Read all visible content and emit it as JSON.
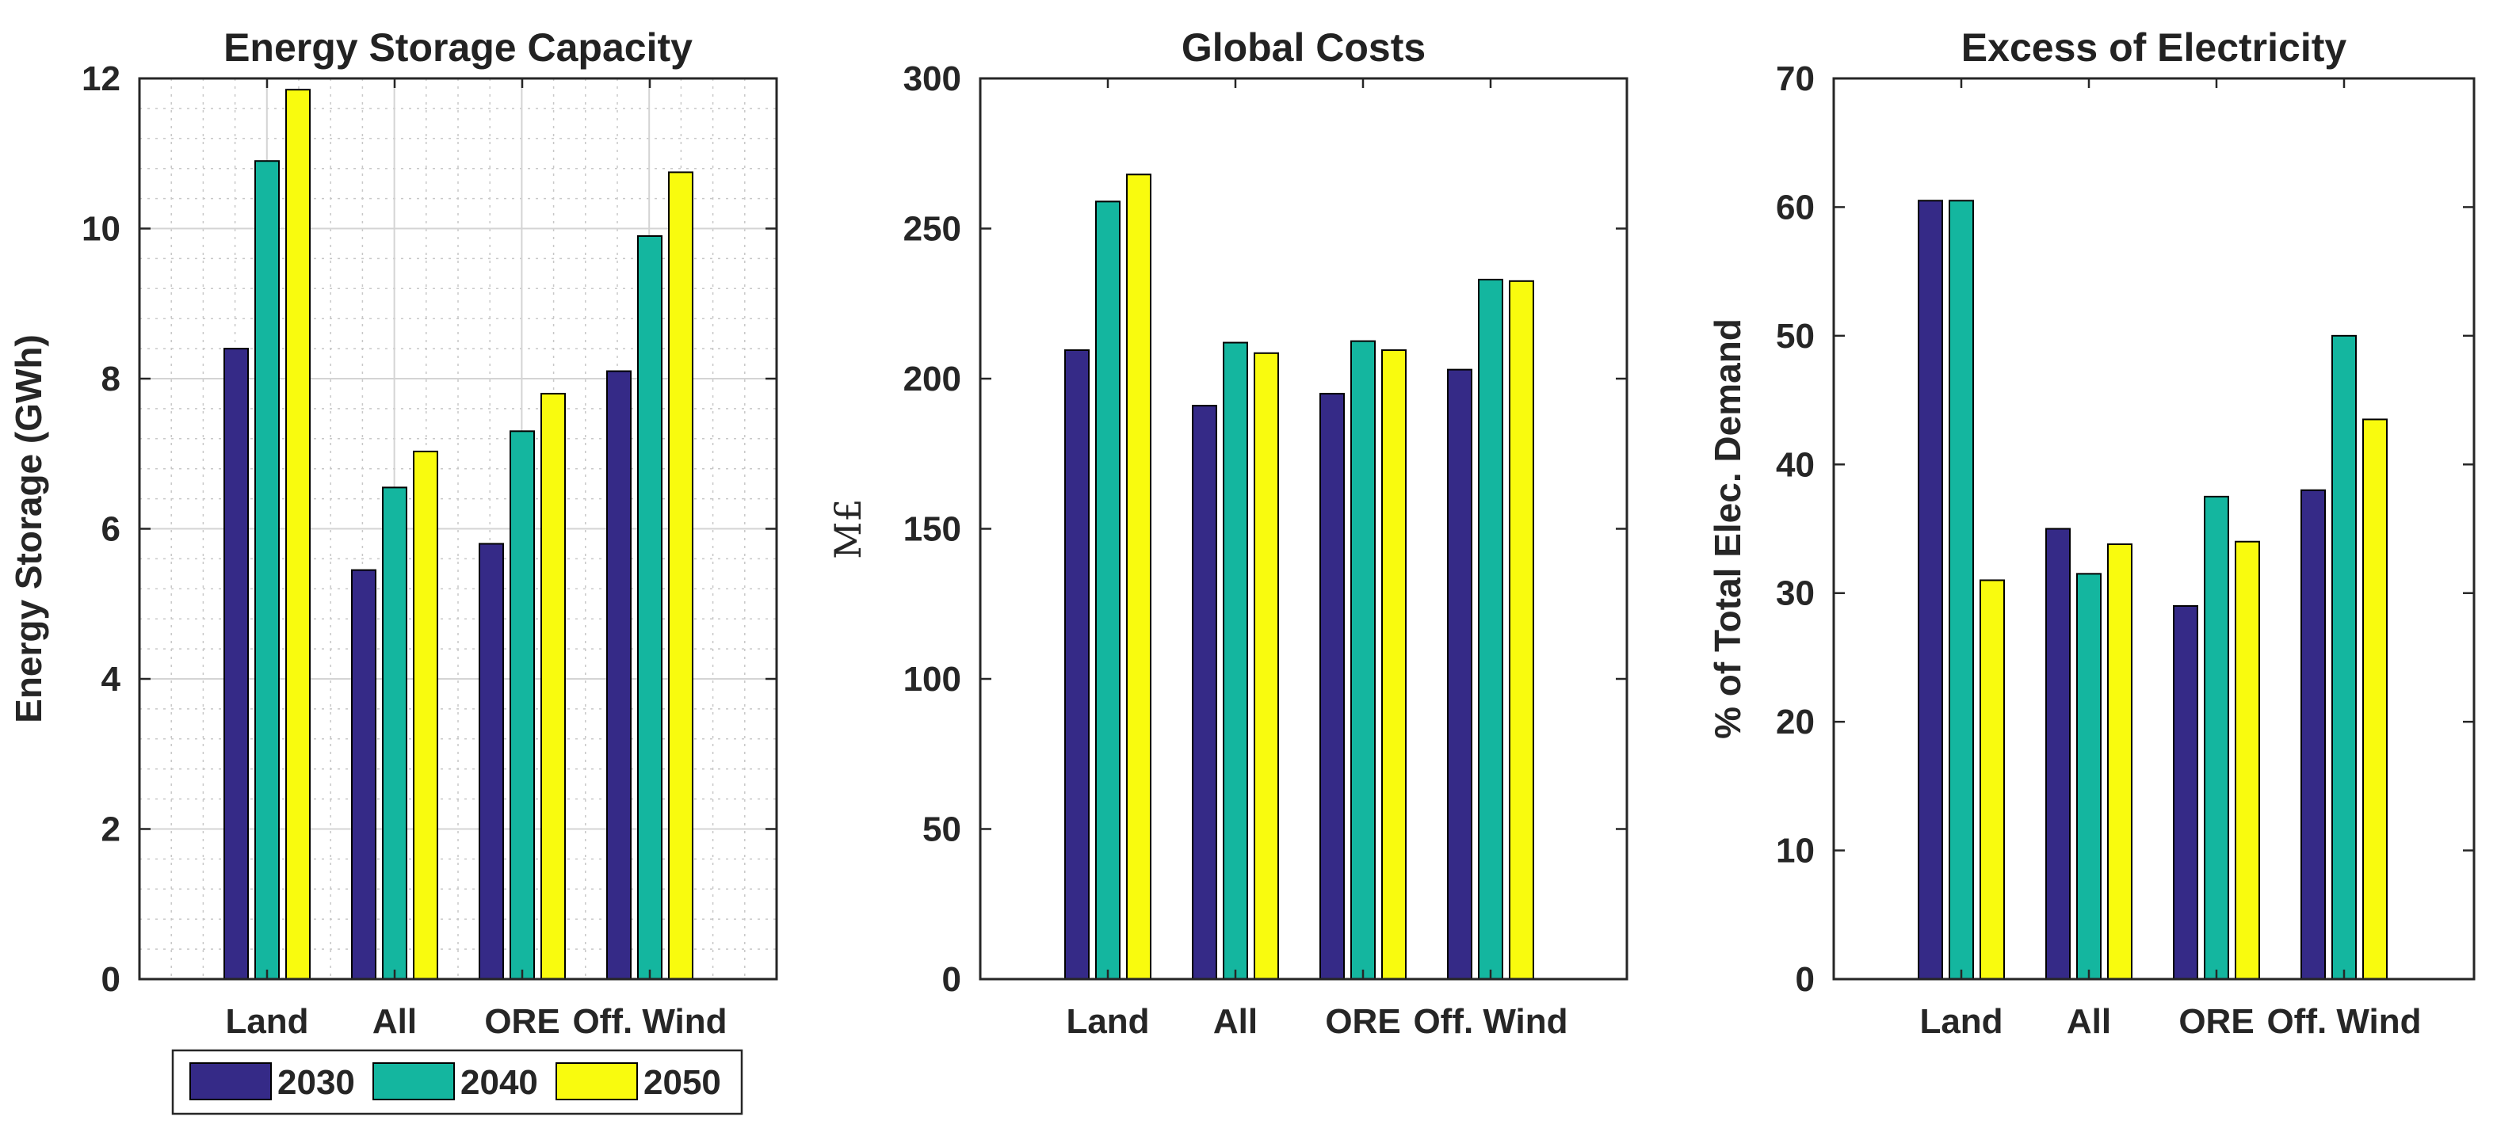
{
  "colors": {
    "2030": "#352a87",
    "2040": "#14b69f",
    "2050": "#f9fb0e",
    "axis": "#262626",
    "grid": "#d4d4d4"
  },
  "chart_data": [
    {
      "type": "bar",
      "title": "Energy Storage Capacity",
      "ylabel": "Energy Storage (GWh)",
      "xlabel": "",
      "categories": [
        "Land",
        "All",
        "ORE",
        "Off. Wind"
      ],
      "ylim": [
        0,
        12
      ],
      "yticks": [
        0,
        2,
        4,
        6,
        8,
        10,
        12
      ],
      "grid": true,
      "minor_grid": true,
      "series": [
        {
          "name": "2030",
          "values": [
            8.4,
            5.45,
            5.8,
            8.1
          ]
        },
        {
          "name": "2040",
          "values": [
            10.9,
            6.55,
            7.3,
            9.9
          ]
        },
        {
          "name": "2050",
          "values": [
            11.85,
            7.03,
            7.8,
            10.75
          ]
        }
      ],
      "legend": {
        "position": "bottom-center",
        "entries": [
          "2030",
          "2040",
          "2050"
        ]
      }
    },
    {
      "type": "bar",
      "title": "Global Costs",
      "ylabel": "M£",
      "xlabel": "",
      "categories": [
        "Land",
        "All",
        "ORE",
        "Off. Wind"
      ],
      "ylim": [
        0,
        300
      ],
      "yticks": [
        0,
        50,
        100,
        150,
        200,
        250,
        300
      ],
      "grid": false,
      "series": [
        {
          "name": "2030",
          "values": [
            209.5,
            191,
            195,
            203
          ]
        },
        {
          "name": "2040",
          "values": [
            259,
            212,
            212.5,
            233
          ]
        },
        {
          "name": "2050",
          "values": [
            268,
            208.5,
            209.5,
            232.5
          ]
        }
      ]
    },
    {
      "type": "bar",
      "title": "Excess of Electricity",
      "ylabel": "% of Total Elec. Demand",
      "xlabel": "",
      "categories": [
        "Land",
        "All",
        "ORE",
        "Off. Wind"
      ],
      "ylim": [
        0,
        70
      ],
      "yticks": [
        0,
        10,
        20,
        30,
        40,
        50,
        60,
        70
      ],
      "grid": false,
      "series": [
        {
          "name": "2030",
          "values": [
            60.5,
            35,
            29,
            38
          ]
        },
        {
          "name": "2040",
          "values": [
            60.5,
            31.5,
            37.5,
            50
          ]
        },
        {
          "name": "2050",
          "values": [
            31,
            33.8,
            34,
            43.5
          ]
        }
      ]
    }
  ]
}
